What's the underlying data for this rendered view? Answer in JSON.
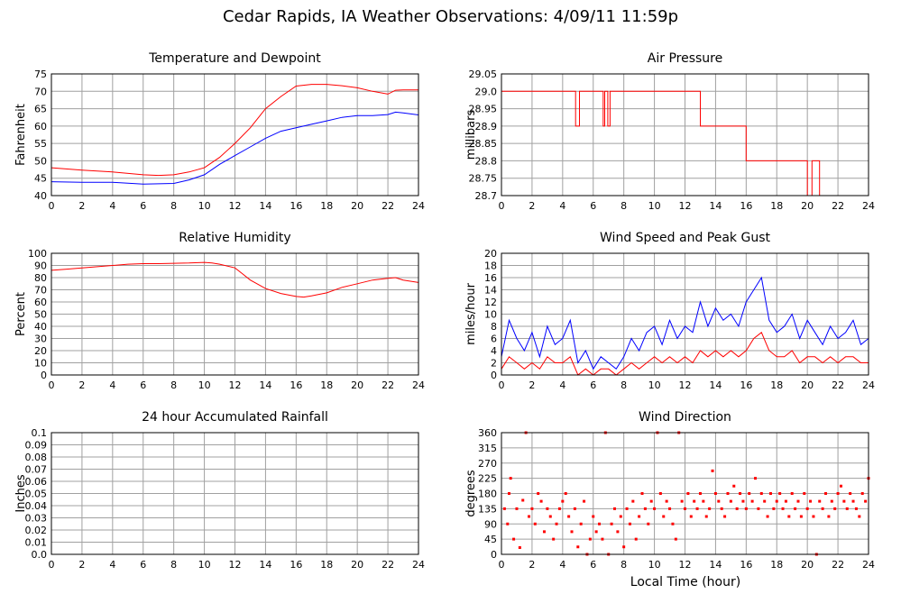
{
  "title": "Cedar Rapids, IA Weather Observations: 4/09/11 11:59p",
  "x_axis_label": "Local Time (hour)",
  "colors": {
    "primary": "#ff0000",
    "secondary": "#0000ff",
    "grid": "#a0a0a0",
    "rain": "#e06060"
  },
  "chart_data": [
    {
      "id": "temp",
      "type": "line",
      "title": "Temperature and Dewpoint",
      "ylabel": "Fahrenheit",
      "xlim": [
        0,
        24
      ],
      "ylim": [
        40,
        75
      ],
      "xticks": [
        0,
        2,
        4,
        6,
        8,
        10,
        12,
        14,
        16,
        18,
        20,
        22,
        24
      ],
      "yticks": [
        40,
        45,
        50,
        55,
        60,
        65,
        70,
        75
      ],
      "ytick_labels": [
        "40",
        "45",
        "50",
        "55",
        "60",
        "65",
        "70",
        "75"
      ],
      "x": [
        0,
        2,
        4,
        6,
        7,
        8,
        9,
        10,
        11,
        12,
        13,
        14,
        15,
        16,
        17,
        18,
        19,
        20,
        21,
        22,
        22.5,
        23,
        24
      ],
      "series": [
        {
          "role": "temperature",
          "color": "#ff0000",
          "values": [
            48,
            47.3,
            46.8,
            46,
            45.8,
            46,
            46.8,
            48,
            51,
            55,
            59.5,
            65,
            68.5,
            71.5,
            72,
            72,
            71.6,
            71,
            70,
            69.2,
            70.3,
            70.4,
            70.4
          ]
        },
        {
          "role": "dewpoint",
          "color": "#0000ff",
          "values": [
            44,
            43.8,
            43.8,
            43.3,
            43.4,
            43.5,
            44.5,
            46,
            49,
            51.5,
            54,
            56.5,
            58.5,
            59.5,
            60.5,
            61.5,
            62.5,
            63,
            63,
            63.3,
            64,
            63.8,
            63.2
          ]
        }
      ]
    },
    {
      "id": "pressure",
      "type": "line",
      "title": "Air Pressure",
      "ylabel": "millibars",
      "xlim": [
        0,
        24
      ],
      "ylim": [
        28.7,
        29.05
      ],
      "xticks": [
        0,
        2,
        4,
        6,
        8,
        10,
        12,
        14,
        16,
        18,
        20,
        22,
        24
      ],
      "yticks": [
        28.7,
        28.75,
        28.8,
        28.85,
        28.9,
        28.95,
        29.0,
        29.05
      ],
      "ytick_labels": [
        "28.7",
        "28.75",
        "28.8",
        "28.85",
        "28.9",
        "28.95",
        "29.0",
        "29.05"
      ],
      "step": true,
      "x": [
        0,
        4.85,
        4.85,
        5.1,
        5.1,
        6.65,
        6.65,
        6.75,
        6.75,
        6.95,
        6.95,
        7.1,
        7.1,
        13,
        13,
        16,
        16,
        20,
        20,
        20.3,
        20.3,
        20.8,
        20.8
      ],
      "series": [
        {
          "role": "pressure",
          "color": "#ff0000",
          "values": [
            29.0,
            29.0,
            28.9,
            28.9,
            29.0,
            29.0,
            28.9,
            28.9,
            29.0,
            29.0,
            28.9,
            28.9,
            29.0,
            29.0,
            28.9,
            28.9,
            28.8,
            28.8,
            28.7,
            28.7,
            28.8,
            28.8,
            28.7
          ]
        }
      ]
    },
    {
      "id": "humidity",
      "type": "line",
      "title": "Relative Humidity",
      "ylabel": "Percent",
      "xlim": [
        0,
        24
      ],
      "ylim": [
        0,
        100
      ],
      "xticks": [
        0,
        2,
        4,
        6,
        8,
        10,
        12,
        14,
        16,
        18,
        20,
        22,
        24
      ],
      "yticks": [
        0,
        10,
        20,
        30,
        40,
        50,
        60,
        70,
        80,
        90,
        100
      ],
      "ytick_labels": [
        "0",
        "10",
        "20",
        "30",
        "40",
        "50",
        "60",
        "70",
        "80",
        "90",
        "100"
      ],
      "x": [
        0,
        1,
        2,
        3,
        4,
        5,
        6,
        7,
        8,
        9,
        10,
        10.5,
        11,
        12,
        12.5,
        13,
        14,
        15,
        16,
        16.5,
        17,
        18,
        19,
        20,
        21,
        22,
        22.5,
        23,
        24
      ],
      "series": [
        {
          "role": "humidity",
          "color": "#ff0000",
          "values": [
            86,
            87,
            88,
            89,
            90,
            91,
            91.5,
            91.5,
            91.8,
            92,
            92.5,
            92,
            91,
            88,
            83,
            78,
            71,
            67,
            64.5,
            64,
            65,
            67.5,
            72,
            75,
            78,
            79.5,
            80,
            78,
            76
          ]
        }
      ]
    },
    {
      "id": "wind",
      "type": "line",
      "title": "Wind Speed and Peak Gust",
      "ylabel": "miles/hour",
      "xlim": [
        0,
        24
      ],
      "ylim": [
        0,
        20
      ],
      "xticks": [
        0,
        2,
        4,
        6,
        8,
        10,
        12,
        14,
        16,
        18,
        20,
        22,
        24
      ],
      "yticks": [
        0,
        2,
        4,
        6,
        8,
        10,
        12,
        14,
        16,
        18,
        20
      ],
      "ytick_labels": [
        "0",
        "2",
        "4",
        "6",
        "8",
        "10",
        "12",
        "14",
        "16",
        "18",
        "20"
      ],
      "x": [
        0,
        0.5,
        1,
        1.5,
        2,
        2.5,
        3,
        3.5,
        4,
        4.5,
        5,
        5.5,
        6,
        6.5,
        7,
        7.5,
        8,
        8.5,
        9,
        9.5,
        10,
        10.5,
        11,
        11.5,
        12,
        12.5,
        13,
        13.5,
        14,
        14.5,
        15,
        15.5,
        16,
        16.5,
        17,
        17.5,
        18,
        18.5,
        19,
        19.5,
        20,
        20.5,
        21,
        21.5,
        22,
        22.5,
        23,
        23.5,
        24
      ],
      "series": [
        {
          "role": "gust",
          "color": "#0000ff",
          "values": [
            3,
            9,
            6,
            4,
            7,
            3,
            8,
            5,
            6,
            9,
            2,
            4,
            1,
            3,
            2,
            1,
            3,
            6,
            4,
            7,
            8,
            5,
            9,
            6,
            8,
            7,
            12,
            8,
            11,
            9,
            10,
            8,
            12,
            14,
            16,
            9,
            7,
            8,
            10,
            6,
            9,
            7,
            5,
            8,
            6,
            7,
            9,
            5,
            6
          ]
        },
        {
          "role": "speed",
          "color": "#ff0000",
          "values": [
            1,
            3,
            2,
            1,
            2,
            1,
            3,
            2,
            2,
            3,
            0,
            1,
            0,
            1,
            1,
            0,
            1,
            2,
            1,
            2,
            3,
            2,
            3,
            2,
            3,
            2,
            4,
            3,
            4,
            3,
            4,
            3,
            4,
            6,
            7,
            4,
            3,
            3,
            4,
            2,
            3,
            3,
            2,
            3,
            2,
            3,
            3,
            2,
            2
          ]
        }
      ]
    },
    {
      "id": "rain",
      "type": "line",
      "title": "24 hour Accumulated Rainfall",
      "ylabel": "Inches",
      "xlim": [
        0,
        24
      ],
      "ylim": [
        0,
        0.1
      ],
      "xticks": [
        0,
        2,
        4,
        6,
        8,
        10,
        12,
        14,
        16,
        18,
        20,
        22,
        24
      ],
      "yticks": [
        0,
        0.01,
        0.02,
        0.03,
        0.04,
        0.05,
        0.06,
        0.07,
        0.08,
        0.09,
        0.1
      ],
      "ytick_labels": [
        "0.0",
        "0.01",
        "0.02",
        "0.03",
        "0.04",
        "0.05",
        "0.06",
        "0.07",
        "0.08",
        "0.09",
        "0.1"
      ],
      "x": [
        0,
        24
      ],
      "series": [
        {
          "role": "rainfall",
          "color": "#e06060",
          "values": [
            0,
            0
          ]
        }
      ]
    },
    {
      "id": "winddir",
      "type": "scatter",
      "title": "Wind Direction",
      "ylabel": "degrees",
      "xlabel": "Local Time (hour)",
      "xlim": [
        0,
        24
      ],
      "ylim": [
        0,
        360
      ],
      "xticks": [
        0,
        2,
        4,
        6,
        8,
        10,
        12,
        14,
        16,
        18,
        20,
        22,
        24
      ],
      "yticks": [
        0,
        45,
        90,
        135,
        180,
        225,
        270,
        315,
        360
      ],
      "ytick_labels": [
        "0",
        "45",
        "90",
        "135",
        "180",
        "225",
        "270",
        "315",
        "360"
      ],
      "points": [
        [
          0.2,
          135
        ],
        [
          0.4,
          90
        ],
        [
          0.5,
          180
        ],
        [
          0.6,
          225
        ],
        [
          0.8,
          45
        ],
        [
          1.0,
          135
        ],
        [
          1.2,
          20
        ],
        [
          1.4,
          160
        ],
        [
          1.6,
          360
        ],
        [
          1.8,
          112
        ],
        [
          2.0,
          135
        ],
        [
          2.2,
          90
        ],
        [
          2.4,
          180
        ],
        [
          2.6,
          157
        ],
        [
          2.8,
          67
        ],
        [
          3.0,
          135
        ],
        [
          3.2,
          112
        ],
        [
          3.4,
          45
        ],
        [
          3.6,
          90
        ],
        [
          3.8,
          135
        ],
        [
          4.0,
          157
        ],
        [
          4.2,
          180
        ],
        [
          4.4,
          112
        ],
        [
          4.6,
          67
        ],
        [
          4.8,
          135
        ],
        [
          5.0,
          22
        ],
        [
          5.2,
          90
        ],
        [
          5.4,
          157
        ],
        [
          5.6,
          0
        ],
        [
          5.8,
          45
        ],
        [
          6.0,
          112
        ],
        [
          6.2,
          67
        ],
        [
          6.4,
          90
        ],
        [
          6.6,
          45
        ],
        [
          6.8,
          360
        ],
        [
          7.0,
          0
        ],
        [
          7.2,
          90
        ],
        [
          7.4,
          135
        ],
        [
          7.6,
          67
        ],
        [
          7.8,
          112
        ],
        [
          8.0,
          22
        ],
        [
          8.2,
          135
        ],
        [
          8.4,
          90
        ],
        [
          8.6,
          157
        ],
        [
          8.8,
          45
        ],
        [
          9.0,
          112
        ],
        [
          9.2,
          180
        ],
        [
          9.4,
          135
        ],
        [
          9.6,
          90
        ],
        [
          9.8,
          157
        ],
        [
          10.0,
          135
        ],
        [
          10.2,
          360
        ],
        [
          10.4,
          180
        ],
        [
          10.6,
          112
        ],
        [
          10.8,
          157
        ],
        [
          11.0,
          135
        ],
        [
          11.2,
          90
        ],
        [
          11.4,
          45
        ],
        [
          11.6,
          360
        ],
        [
          11.8,
          157
        ],
        [
          12.0,
          135
        ],
        [
          12.2,
          180
        ],
        [
          12.4,
          112
        ],
        [
          12.6,
          157
        ],
        [
          12.8,
          135
        ],
        [
          13.0,
          180
        ],
        [
          13.2,
          157
        ],
        [
          13.4,
          112
        ],
        [
          13.6,
          135
        ],
        [
          13.8,
          247
        ],
        [
          14.0,
          180
        ],
        [
          14.2,
          157
        ],
        [
          14.4,
          135
        ],
        [
          14.6,
          112
        ],
        [
          14.8,
          180
        ],
        [
          15.0,
          157
        ],
        [
          15.2,
          202
        ],
        [
          15.4,
          135
        ],
        [
          15.6,
          180
        ],
        [
          15.8,
          157
        ],
        [
          16.0,
          135
        ],
        [
          16.2,
          180
        ],
        [
          16.4,
          157
        ],
        [
          16.6,
          225
        ],
        [
          16.8,
          135
        ],
        [
          17.0,
          180
        ],
        [
          17.2,
          157
        ],
        [
          17.4,
          112
        ],
        [
          17.6,
          180
        ],
        [
          17.8,
          135
        ],
        [
          18.0,
          157
        ],
        [
          18.2,
          180
        ],
        [
          18.4,
          135
        ],
        [
          18.6,
          157
        ],
        [
          18.8,
          112
        ],
        [
          19.0,
          180
        ],
        [
          19.2,
          135
        ],
        [
          19.4,
          157
        ],
        [
          19.6,
          112
        ],
        [
          19.8,
          180
        ],
        [
          20.0,
          135
        ],
        [
          20.2,
          157
        ],
        [
          20.4,
          112
        ],
        [
          20.6,
          0
        ],
        [
          20.8,
          157
        ],
        [
          21.0,
          135
        ],
        [
          21.2,
          180
        ],
        [
          21.4,
          112
        ],
        [
          21.6,
          157
        ],
        [
          21.8,
          135
        ],
        [
          22.0,
          180
        ],
        [
          22.2,
          202
        ],
        [
          22.4,
          157
        ],
        [
          22.6,
          135
        ],
        [
          22.8,
          180
        ],
        [
          23.0,
          157
        ],
        [
          23.2,
          135
        ],
        [
          23.4,
          112
        ],
        [
          23.6,
          180
        ],
        [
          23.8,
          157
        ],
        [
          24.0,
          225
        ]
      ]
    }
  ]
}
